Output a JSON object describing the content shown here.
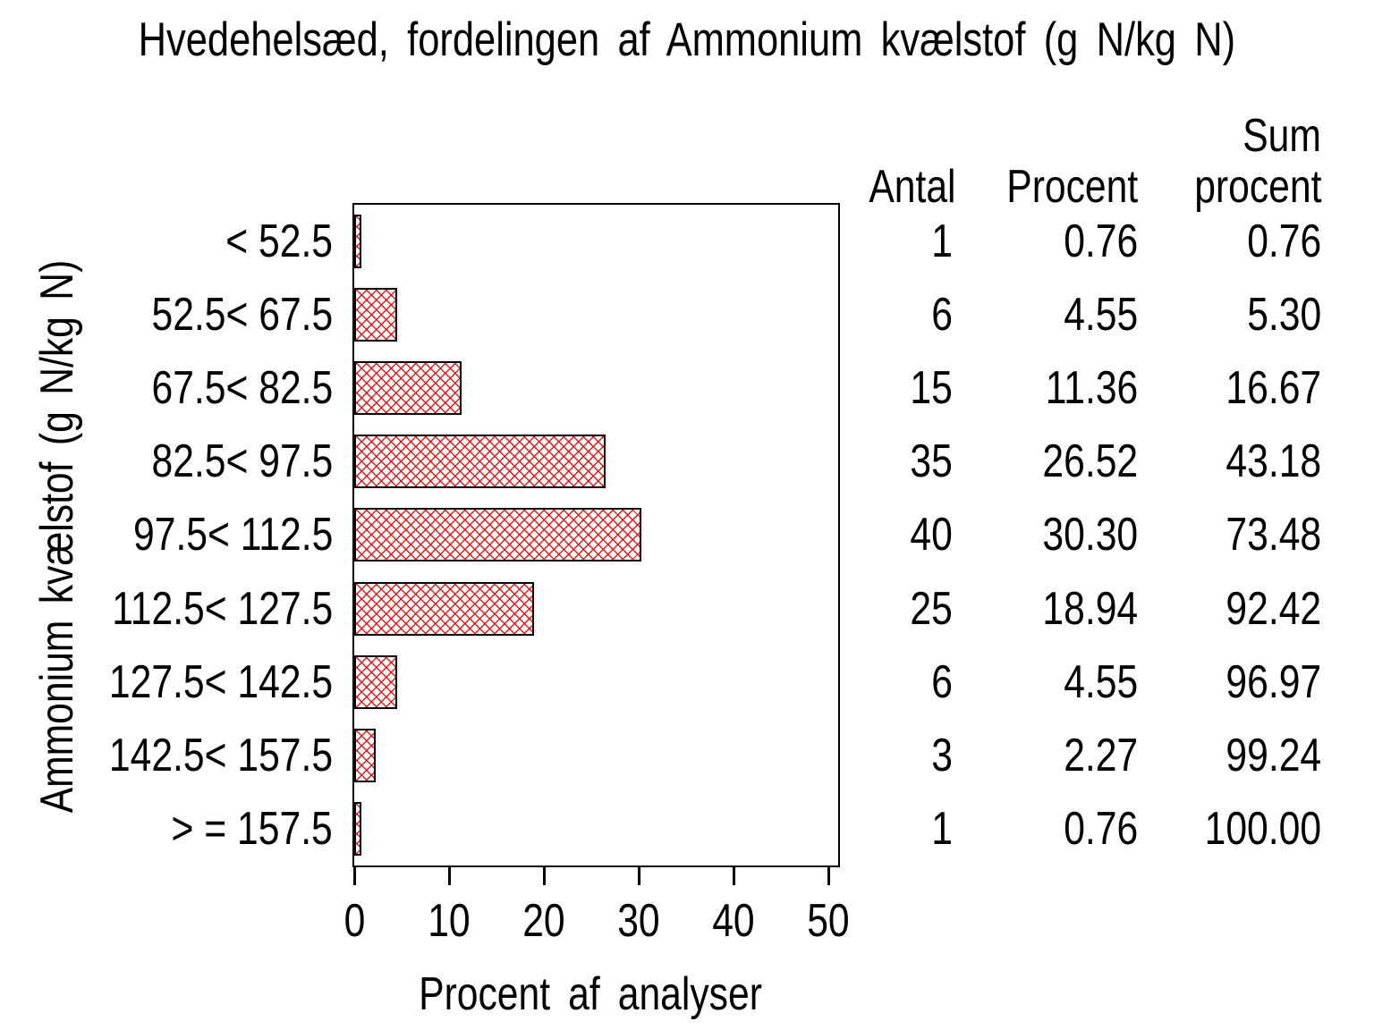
{
  "title": "Hvedehelsæd, fordelingen af Ammonium kvælstof (g N/kg N)",
  "chart_data": {
    "type": "bar",
    "orientation": "horizontal",
    "title": "Hvedehelsæd, fordelingen af Ammonium kvælstof (g N/kg N)",
    "categories": [
      "< 52.5",
      "52.5< 67.5",
      "67.5< 82.5",
      "82.5< 97.5",
      "97.5< 112.5",
      "112.5< 127.5",
      "127.5< 142.5",
      "142.5< 157.5",
      "> = 157.5"
    ],
    "values": [
      0.76,
      4.55,
      11.36,
      26.52,
      30.3,
      18.94,
      4.55,
      2.27,
      0.76
    ],
    "counts": [
      1,
      6,
      15,
      35,
      40,
      25,
      6,
      3,
      1
    ],
    "xlabel": "Procent af analyser",
    "ylabel": "Ammonium kvælstof (g N/kg N)",
    "x_ticks": [
      0,
      10,
      20,
      30,
      40,
      50
    ],
    "xlim": [
      0,
      51.3
    ],
    "grid": false,
    "bar_fill": "red diagonal crosshatch",
    "bar_line_color": "#e41010",
    "bar_border_color": "#000000",
    "background": "#ffffff"
  },
  "table": {
    "headers": {
      "antal": "Antal",
      "procent": "Procent",
      "sum_line1": "Sum",
      "sum_line2": "procent"
    },
    "rows": [
      [
        "1",
        "0.76",
        "0.76"
      ],
      [
        "6",
        "4.55",
        "5.30"
      ],
      [
        "15",
        "11.36",
        "16.67"
      ],
      [
        "35",
        "26.52",
        "43.18"
      ],
      [
        "40",
        "30.30",
        "73.48"
      ],
      [
        "25",
        "18.94",
        "92.42"
      ],
      [
        "6",
        "4.55",
        "96.97"
      ],
      [
        "3",
        "2.27",
        "99.24"
      ],
      [
        "1",
        "0.76",
        "100.00"
      ]
    ]
  }
}
